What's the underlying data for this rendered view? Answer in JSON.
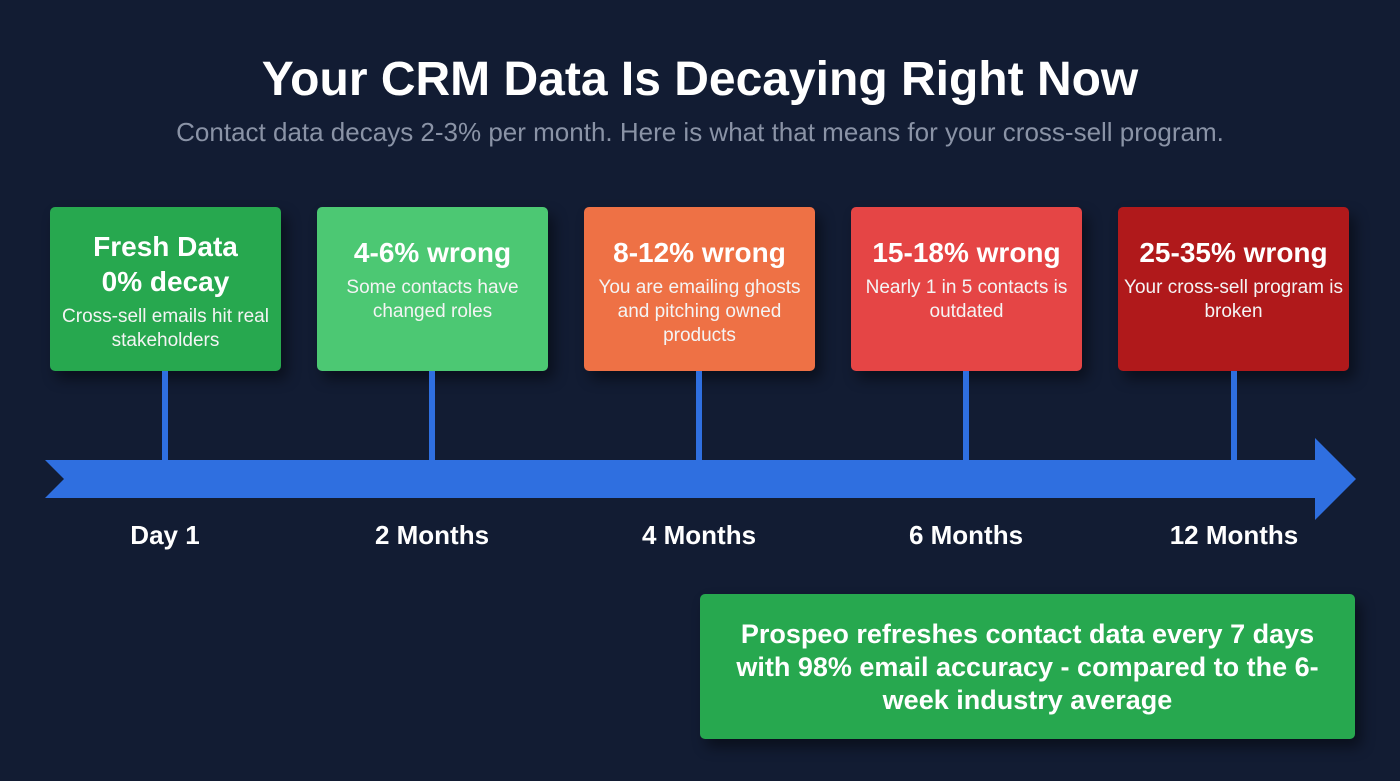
{
  "title": "Your CRM Data Is Decaying Right Now",
  "subtitle": "Contact data decays 2-3% per month. Here is what that means for your cross-sell program.",
  "stages": [
    {
      "heading": "Fresh Data\n0% decay",
      "heading1": "Fresh Data",
      "heading2": "0% decay",
      "desc": "Cross-sell emails hit real stakeholders",
      "time": "Day 1",
      "color": "#27a84f"
    },
    {
      "heading": "4-6% wrong",
      "desc": "Some contacts have changed roles",
      "time": "2 Months",
      "color": "#4cc873"
    },
    {
      "heading": "8-12% wrong",
      "desc": "You are emailing ghosts and pitching owned products",
      "time": "4 Months",
      "color": "#ee7145"
    },
    {
      "heading": "15-18% wrong",
      "desc": "Nearly 1 in 5 contacts is outdated",
      "time": "6 Months",
      "color": "#e54545"
    },
    {
      "heading": "25-35% wrong",
      "desc": "Your cross-sell program is broken",
      "time": "12 Months",
      "color": "#b0191b"
    }
  ],
  "callout": "Prospeo refreshes contact data every 7 days with 98% email accuracy - compared to the 6-week industry average",
  "colors": {
    "background": "#121c33",
    "timeline": "#2f6fe0"
  }
}
